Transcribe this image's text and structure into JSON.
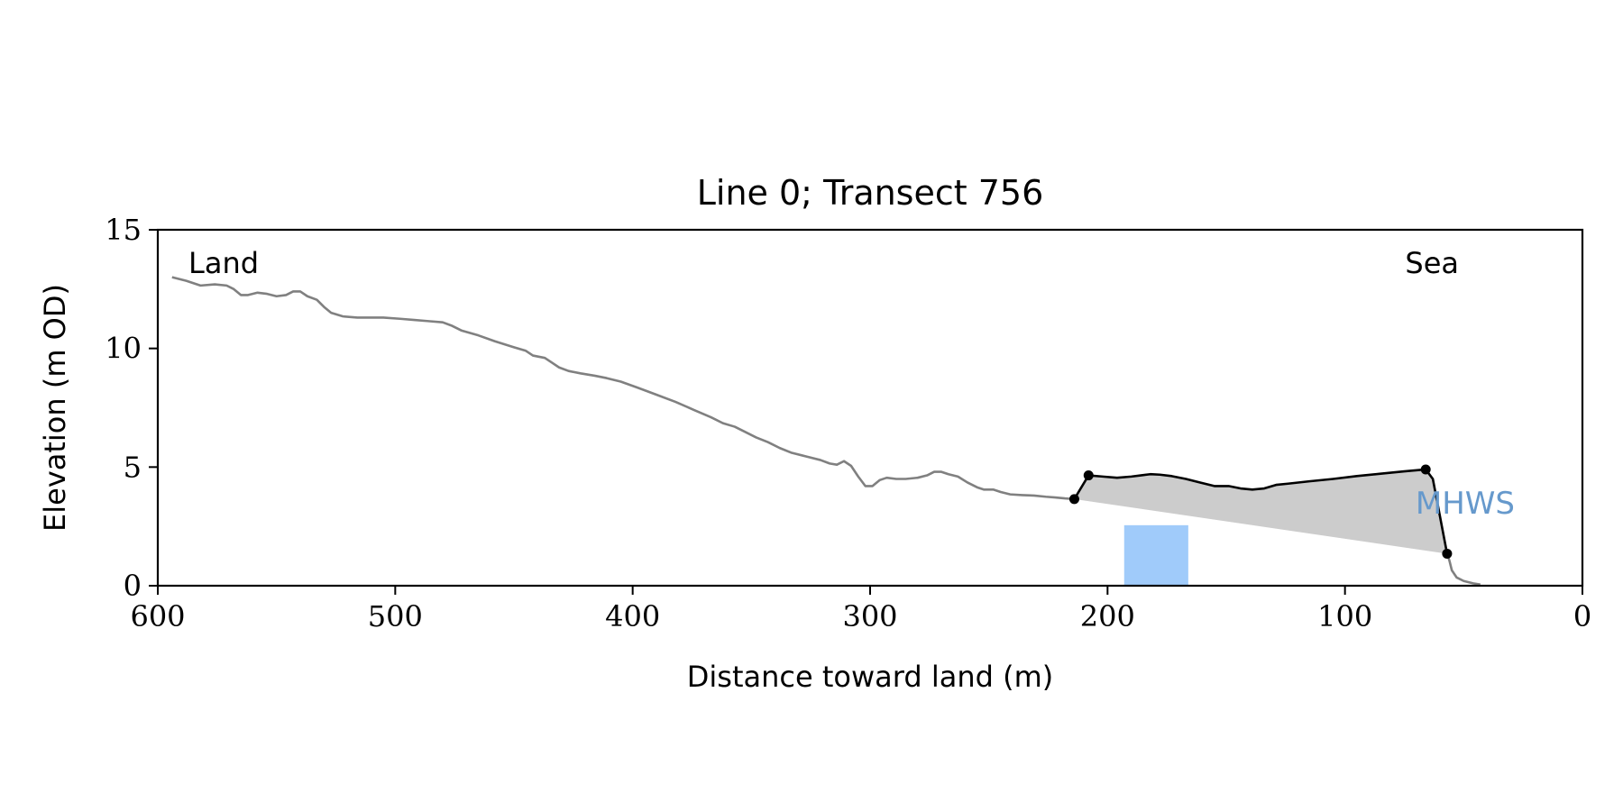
{
  "chart_data": {
    "type": "line",
    "title": "Line 0; Transect 756",
    "xlabel": "Distance toward land (m)",
    "ylabel": "Elevation (m OD)",
    "xlim": [
      600,
      0
    ],
    "ylim": [
      0,
      15
    ],
    "x_ticks": [
      {
        "value": 600,
        "label": "600"
      },
      {
        "value": 500,
        "label": "500"
      },
      {
        "value": 400,
        "label": "400"
      },
      {
        "value": 300,
        "label": "300"
      },
      {
        "value": 200,
        "label": "200"
      },
      {
        "value": 100,
        "label": "100"
      },
      {
        "value": 0,
        "label": "0"
      }
    ],
    "y_ticks": [
      {
        "value": 0,
        "label": "0"
      },
      {
        "value": 5,
        "label": "5"
      },
      {
        "value": 10,
        "label": "10"
      },
      {
        "value": 15,
        "label": "15"
      }
    ],
    "grid": false,
    "annotations": {
      "land": "Land",
      "sea": "Sea",
      "mhws": "MHWS"
    },
    "colors": {
      "profile": "#808080",
      "dune": "#000000",
      "fill": "#cccccc",
      "mhws_box": "#a0cbfa",
      "mhws_text": "#6699cc",
      "axes": "#000000"
    },
    "series": [
      {
        "points": [
          [
            594,
            13.0
          ],
          [
            588,
            12.85
          ],
          [
            582,
            12.65
          ],
          [
            576,
            12.7
          ],
          [
            571,
            12.65
          ],
          [
            568,
            12.5
          ],
          [
            565,
            12.25
          ],
          [
            562,
            12.25
          ],
          [
            558,
            12.35
          ],
          [
            554,
            12.3
          ],
          [
            550,
            12.2
          ],
          [
            546,
            12.25
          ],
          [
            543,
            12.4
          ],
          [
            540,
            12.4
          ],
          [
            537,
            12.2
          ],
          [
            533,
            12.05
          ],
          [
            530,
            11.75
          ],
          [
            527,
            11.5
          ],
          [
            522,
            11.35
          ],
          [
            516,
            11.3
          ],
          [
            505,
            11.3
          ],
          [
            498,
            11.25
          ],
          [
            492,
            11.2
          ],
          [
            486,
            11.15
          ],
          [
            480,
            11.1
          ],
          [
            476,
            10.95
          ],
          [
            472,
            10.75
          ],
          [
            465,
            10.55
          ],
          [
            458,
            10.3
          ],
          [
            450,
            10.05
          ],
          [
            445,
            9.9
          ],
          [
            442,
            9.7
          ],
          [
            437,
            9.6
          ],
          [
            434,
            9.4
          ],
          [
            431,
            9.2
          ],
          [
            427,
            9.05
          ],
          [
            422,
            8.95
          ],
          [
            416,
            8.85
          ],
          [
            411,
            8.75
          ],
          [
            405,
            8.6
          ],
          [
            398,
            8.35
          ],
          [
            390,
            8.05
          ],
          [
            382,
            7.75
          ],
          [
            374,
            7.4
          ],
          [
            367,
            7.1
          ],
          [
            362,
            6.85
          ],
          [
            357,
            6.7
          ],
          [
            353,
            6.5
          ],
          [
            348,
            6.25
          ],
          [
            343,
            6.05
          ],
          [
            338,
            5.8
          ],
          [
            333,
            5.6
          ],
          [
            327,
            5.45
          ],
          [
            321,
            5.3
          ],
          [
            317,
            5.15
          ],
          [
            314,
            5.1
          ],
          [
            311,
            5.25
          ],
          [
            308,
            5.05
          ],
          [
            305,
            4.6
          ],
          [
            302,
            4.2
          ],
          [
            299,
            4.2
          ],
          [
            296,
            4.45
          ],
          [
            293,
            4.55
          ],
          [
            289,
            4.5
          ],
          [
            285,
            4.5
          ],
          [
            280,
            4.55
          ],
          [
            276,
            4.65
          ],
          [
            273,
            4.8
          ],
          [
            270,
            4.8
          ],
          [
            267,
            4.7
          ],
          [
            263,
            4.6
          ],
          [
            259,
            4.35
          ],
          [
            255,
            4.15
          ],
          [
            252,
            4.05
          ],
          [
            248,
            4.05
          ],
          [
            245,
            3.95
          ],
          [
            241,
            3.85
          ],
          [
            236,
            3.82
          ],
          [
            231,
            3.8
          ],
          [
            226,
            3.75
          ],
          [
            222,
            3.72
          ],
          [
            218,
            3.68
          ],
          [
            214,
            3.65
          ]
        ]
      },
      {
        "points": [
          [
            214,
            3.65
          ],
          [
            208,
            4.65
          ],
          [
            202,
            4.6
          ],
          [
            196,
            4.55
          ],
          [
            190,
            4.6
          ],
          [
            186,
            4.65
          ],
          [
            182,
            4.7
          ],
          [
            178,
            4.68
          ],
          [
            173,
            4.62
          ],
          [
            167,
            4.5
          ],
          [
            161,
            4.35
          ],
          [
            155,
            4.2
          ],
          [
            149,
            4.2
          ],
          [
            144,
            4.1
          ],
          [
            139,
            4.05
          ],
          [
            134,
            4.1
          ],
          [
            129,
            4.25
          ],
          [
            124,
            4.3
          ],
          [
            115,
            4.4
          ],
          [
            105,
            4.5
          ],
          [
            95,
            4.62
          ],
          [
            85,
            4.72
          ],
          [
            75,
            4.82
          ],
          [
            66,
            4.9
          ],
          [
            63,
            4.5
          ],
          [
            57,
            1.35
          ]
        ]
      },
      {
        "points": [
          [
            57,
            1.35
          ],
          [
            56,
            1.05
          ],
          [
            55,
            0.65
          ],
          [
            53,
            0.35
          ],
          [
            50,
            0.2
          ],
          [
            46,
            0.1
          ],
          [
            43,
            0.05
          ]
        ]
      }
    ],
    "key_points": [
      {
        "x": 214,
        "y": 3.65
      },
      {
        "x": 208,
        "y": 4.65
      },
      {
        "x": 66,
        "y": 4.9
      },
      {
        "x": 57,
        "y": 1.35
      }
    ],
    "mhws_region": {
      "x_from": 193,
      "x_to": 166,
      "y_from": 0,
      "y_to": 2.55
    }
  }
}
